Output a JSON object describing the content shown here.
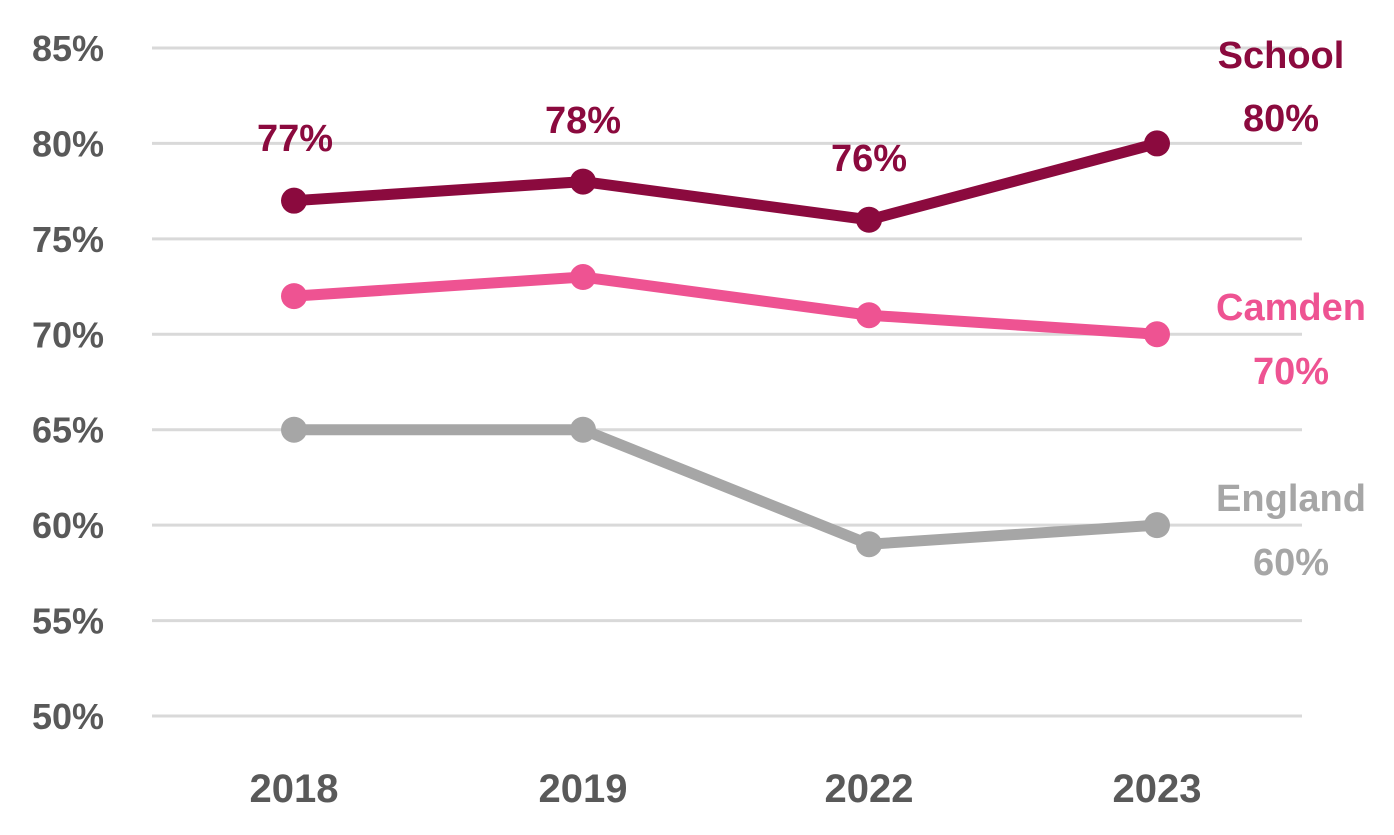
{
  "chart_data": {
    "type": "line",
    "categories": [
      "2018",
      "2019",
      "2022",
      "2023"
    ],
    "ylim": [
      50,
      85
    ],
    "yticks": [
      50,
      55,
      60,
      65,
      70,
      75,
      80,
      85
    ],
    "ytick_labels": [
      "50%",
      "55%",
      "60%",
      "65%",
      "70%",
      "75%",
      "80%",
      "85%"
    ],
    "grid": true,
    "legend": "end-of-line labels",
    "series": [
      {
        "name": "School",
        "values": [
          77,
          78,
          76,
          80
        ],
        "value_labels": [
          "77%",
          "78%",
          "76%",
          "80%"
        ],
        "color": "#8b0a3e"
      },
      {
        "name": "Camden",
        "values": [
          72,
          73,
          71,
          70
        ],
        "end_label": "70%",
        "color": "#ee5392"
      },
      {
        "name": "England",
        "values": [
          65,
          65,
          59,
          60
        ],
        "end_label": "60%",
        "color": "#a6a6a6"
      }
    ]
  }
}
